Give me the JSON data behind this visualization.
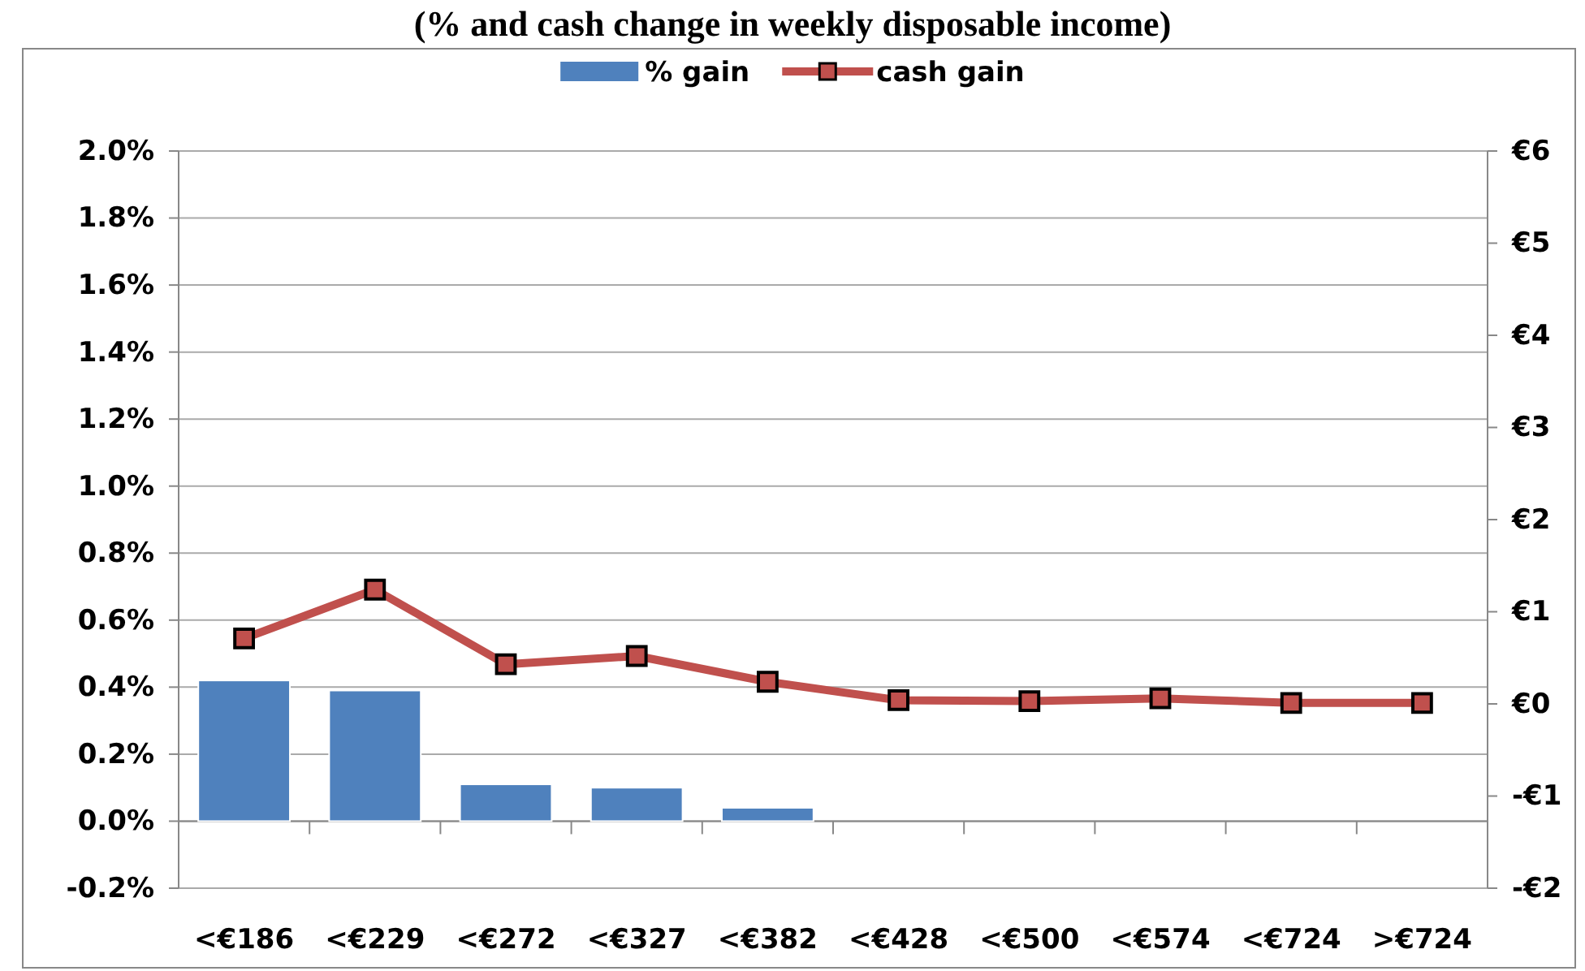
{
  "chart_data": {
    "type": "bar",
    "title": "(% and cash change in weekly disposable income)",
    "categories": [
      "<€186",
      "<€229",
      "<€272",
      "<€327",
      "<€382",
      "<€428",
      "<€500",
      "<€574",
      "<€724",
      ">€724"
    ],
    "series": [
      {
        "name": "% gain",
        "color": "#4f81bd",
        "values": [
          0.42,
          0.39,
          0.11,
          0.1,
          0.04,
          0,
          0,
          0,
          0,
          0
        ]
      },
      {
        "name": "cash gain",
        "type": "line",
        "axis": "y2",
        "color": "#c0504d",
        "marker": "square",
        "values": [
          0.71,
          1.24,
          0.43,
          0.52,
          0.24,
          0.04,
          0.03,
          0.06,
          0.01,
          0.01
        ]
      }
    ],
    "ylim": [
      -0.2,
      2.0
    ],
    "yticks": [
      {
        "value": -0.2,
        "label": "-0.2%"
      },
      {
        "value": 0,
        "label": "0.0%"
      },
      {
        "value": 0.2,
        "label": "0.2%"
      },
      {
        "value": 0.4,
        "label": "0.4%"
      },
      {
        "value": 0.6,
        "label": "0.6%"
      },
      {
        "value": 0.8,
        "label": "0.8%"
      },
      {
        "value": 1.0,
        "label": "1.0%"
      },
      {
        "value": 1.2,
        "label": "1.2%"
      },
      {
        "value": 1.4,
        "label": "1.4%"
      },
      {
        "value": 1.6,
        "label": "1.6%"
      },
      {
        "value": 1.8,
        "label": "1.8%"
      },
      {
        "value": 2.0,
        "label": "2.0%"
      }
    ],
    "y2lim": [
      -2,
      6
    ],
    "y2ticks": [
      {
        "value": -2,
        "label": "-€2"
      },
      {
        "value": -1,
        "label": "-€1"
      },
      {
        "value": 0,
        "label": "€0"
      },
      {
        "value": 1,
        "label": "€1"
      },
      {
        "value": 2,
        "label": "€2"
      },
      {
        "value": 3,
        "label": "€3"
      },
      {
        "value": 4,
        "label": "€4"
      },
      {
        "value": 5,
        "label": "€5"
      },
      {
        "value": 6,
        "label": "€6"
      }
    ],
    "grid": "y",
    "legend": "top"
  }
}
